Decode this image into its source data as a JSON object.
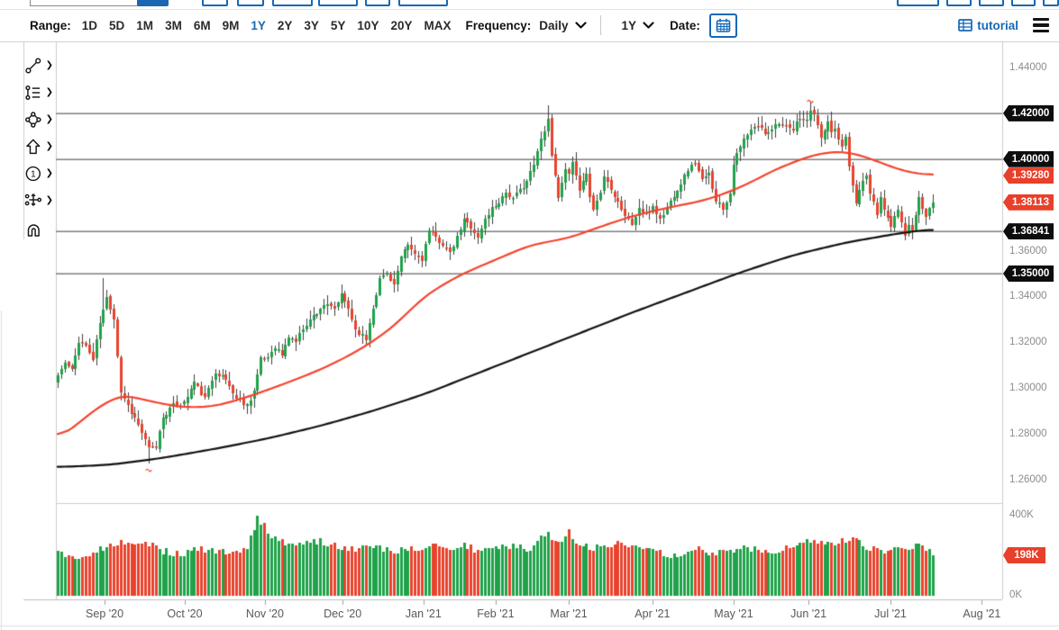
{
  "toolbar": {
    "range_label": "Range:",
    "ranges": [
      "1D",
      "5D",
      "1M",
      "3M",
      "6M",
      "9M",
      "1Y",
      "2Y",
      "3Y",
      "5Y",
      "10Y",
      "20Y",
      "MAX"
    ],
    "active_range": "1Y",
    "frequency_label": "Frequency:",
    "frequency_value": "Daily",
    "period_value": "1Y",
    "date_label": "Date:",
    "tutorial_label": "tutorial"
  },
  "side_toolbar": {
    "tools": [
      {
        "name": "trend-line-tool",
        "icon": "trend-line",
        "has_submenu": true
      },
      {
        "name": "fibonacci-tool",
        "icon": "fibonacci",
        "has_submenu": true
      },
      {
        "name": "shapes-tool",
        "icon": "shapes",
        "has_submenu": true
      },
      {
        "name": "arrow-tool",
        "icon": "arrow-up",
        "has_submenu": true
      },
      {
        "name": "annotation-number-tool",
        "icon": "number-one",
        "has_submenu": true
      },
      {
        "name": "measure-tool",
        "icon": "measure",
        "has_submenu": true
      },
      {
        "name": "magnet-tool",
        "icon": "magnet",
        "has_submenu": false
      }
    ]
  },
  "chart_data": {
    "type": "candlestick",
    "frequency": "Daily",
    "range": "1Y",
    "grid": false,
    "legend": "none",
    "price_axis": {
      "ticks": [
        {
          "label": "1.44000",
          "value": 1.44
        },
        {
          "label": "1.36000",
          "value": 1.36
        },
        {
          "label": "1.34000",
          "value": 1.34
        },
        {
          "label": "1.32000",
          "value": 1.32
        },
        {
          "label": "1.30000",
          "value": 1.3
        },
        {
          "label": "1.28000",
          "value": 1.28
        },
        {
          "label": "1.26000",
          "value": 1.26
        }
      ],
      "range": [
        1.26,
        1.44
      ]
    },
    "volume_axis": {
      "ticks": [
        {
          "label": "400K",
          "value": 400
        },
        {
          "label": "0K",
          "value": 0
        }
      ],
      "range": [
        0,
        400
      ]
    },
    "price_tags": [
      {
        "label": "1.42000",
        "value": 1.42,
        "color": "black"
      },
      {
        "label": "1.40000",
        "value": 1.4,
        "color": "black"
      },
      {
        "label": "1.39280",
        "value": 1.3928,
        "color": "red"
      },
      {
        "label": "1.38113",
        "value": 1.38113,
        "color": "red"
      },
      {
        "label": "1.36841",
        "value": 1.36841,
        "color": "black"
      },
      {
        "label": "1.35000",
        "value": 1.35,
        "color": "black"
      }
    ],
    "volume_tag": {
      "label": "198K",
      "value": 198,
      "color": "red"
    },
    "horizontal_levels": [
      1.42,
      1.4,
      1.36841,
      1.35
    ],
    "x_axis": [
      {
        "label": "Sep '20",
        "day": 13.4
      },
      {
        "label": "Oct '20",
        "day": 36.3
      },
      {
        "label": "Nov '20",
        "day": 59.2
      },
      {
        "label": "Dec '20",
        "day": 81.4
      },
      {
        "label": "Jan '21",
        "day": 104.5
      },
      {
        "label": "Feb '21",
        "day": 125.1
      },
      {
        "label": "Mar '21",
        "day": 146.0
      },
      {
        "label": "Apr '21",
        "day": 169.9
      },
      {
        "label": "May '21",
        "day": 193.1
      },
      {
        "label": "Jun '21",
        "day": 214.5
      },
      {
        "label": "Jul '21",
        "day": 237.9
      },
      {
        "label": "Aug '21",
        "day": 264.0
      }
    ],
    "days": 251,
    "seed": 11,
    "last_close": 1.38113,
    "last_volume_k": 198,
    "close_anchors": [
      [
        0,
        1.3055
      ],
      [
        2,
        1.311
      ],
      [
        4,
        1.3075
      ],
      [
        6,
        1.3205
      ],
      [
        8,
        1.3185
      ],
      [
        10,
        1.3125
      ],
      [
        12,
        1.3285
      ],
      [
        14,
        1.3395
      ],
      [
        16,
        1.3305
      ],
      [
        18,
        1.2985
      ],
      [
        20,
        1.2925
      ],
      [
        23,
        1.284
      ],
      [
        26,
        1.2735
      ],
      [
        28,
        1.2745
      ],
      [
        30,
        1.2875
      ],
      [
        33,
        1.2925
      ],
      [
        36,
        1.2935
      ],
      [
        39,
        1.3025
      ],
      [
        42,
        1.2955
      ],
      [
        45,
        1.3075
      ],
      [
        48,
        1.3035
      ],
      [
        51,
        1.2955
      ],
      [
        54,
        1.2925
      ],
      [
        56,
        1.299
      ],
      [
        58,
        1.3125
      ],
      [
        60,
        1.3135
      ],
      [
        62,
        1.3185
      ],
      [
        64,
        1.3145
      ],
      [
        66,
        1.3225
      ],
      [
        68,
        1.3205
      ],
      [
        70,
        1.3265
      ],
      [
        73,
        1.3315
      ],
      [
        76,
        1.3365
      ],
      [
        79,
        1.3345
      ],
      [
        81,
        1.3405
      ],
      [
        83,
        1.335
      ],
      [
        85,
        1.3255
      ],
      [
        88,
        1.3215
      ],
      [
        90,
        1.3355
      ],
      [
        92,
        1.3475
      ],
      [
        94,
        1.3505
      ],
      [
        96,
        1.345
      ],
      [
        98,
        1.3565
      ],
      [
        100,
        1.3625
      ],
      [
        102,
        1.3585
      ],
      [
        104,
        1.3565
      ],
      [
        106,
        1.3685
      ],
      [
        108,
        1.3655
      ],
      [
        110,
        1.363
      ],
      [
        112,
        1.3585
      ],
      [
        114,
        1.3655
      ],
      [
        116,
        1.3735
      ],
      [
        118,
        1.3705
      ],
      [
        120,
        1.3655
      ],
      [
        122,
        1.3735
      ],
      [
        124,
        1.3785
      ],
      [
        126,
        1.3815
      ],
      [
        128,
        1.3855
      ],
      [
        130,
        1.3825
      ],
      [
        132,
        1.3865
      ],
      [
        134,
        1.3905
      ],
      [
        136,
        1.3975
      ],
      [
        138,
        1.4085
      ],
      [
        140,
        1.4175
      ],
      [
        141,
        1.4015
      ],
      [
        142,
        1.3935
      ],
      [
        143,
        1.3825
      ],
      [
        144,
        1.3905
      ],
      [
        145,
        1.3965
      ],
      [
        146,
        1.3925
      ],
      [
        147,
        1.3985
      ],
      [
        148,
        1.3925
      ],
      [
        149,
        1.3855
      ],
      [
        150,
        1.3895
      ],
      [
        151,
        1.3925
      ],
      [
        152,
        1.3845
      ],
      [
        153,
        1.3785
      ],
      [
        154,
        1.3815
      ],
      [
        155,
        1.3855
      ],
      [
        156,
        1.3925
      ],
      [
        158,
        1.3875
      ],
      [
        160,
        1.3815
      ],
      [
        162,
        1.3755
      ],
      [
        164,
        1.3715
      ],
      [
        166,
        1.3785
      ],
      [
        168,
        1.3755
      ],
      [
        170,
        1.3795
      ],
      [
        172,
        1.3735
      ],
      [
        174,
        1.3785
      ],
      [
        176,
        1.3845
      ],
      [
        178,
        1.3895
      ],
      [
        180,
        1.3955
      ],
      [
        182,
        1.3985
      ],
      [
        184,
        1.3905
      ],
      [
        186,
        1.3935
      ],
      [
        188,
        1.3825
      ],
      [
        190,
        1.3785
      ],
      [
        192,
        1.3855
      ],
      [
        193,
        1.3985
      ],
      [
        196,
        1.4085
      ],
      [
        198,
        1.4125
      ],
      [
        200,
        1.4145
      ],
      [
        202,
        1.4115
      ],
      [
        204,
        1.4135
      ],
      [
        206,
        1.4165
      ],
      [
        208,
        1.4135
      ],
      [
        210,
        1.4125
      ],
      [
        212,
        1.4185
      ],
      [
        214,
        1.4165
      ],
      [
        215,
        1.4215
      ],
      [
        216,
        1.4185
      ],
      [
        217,
        1.4155
      ],
      [
        218,
        1.4085
      ],
      [
        219,
        1.4125
      ],
      [
        220,
        1.4155
      ],
      [
        221,
        1.4105
      ],
      [
        222,
        1.4135
      ],
      [
        223,
        1.4085
      ],
      [
        224,
        1.4055
      ],
      [
        225,
        1.4105
      ],
      [
        226,
        1.3975
      ],
      [
        227,
        1.3895
      ],
      [
        228,
        1.3815
      ],
      [
        229,
        1.3855
      ],
      [
        230,
        1.3905
      ],
      [
        231,
        1.3925
      ],
      [
        232,
        1.3855
      ],
      [
        233,
        1.3805
      ],
      [
        234,
        1.3765
      ],
      [
        235,
        1.3825
      ],
      [
        236,
        1.3785
      ],
      [
        237,
        1.3755
      ],
      [
        238,
        1.3705
      ],
      [
        239,
        1.3755
      ],
      [
        240,
        1.3785
      ],
      [
        241,
        1.3725
      ],
      [
        242,
        1.3675
      ],
      [
        243,
        1.3705
      ],
      [
        244,
        1.3685
      ],
      [
        245,
        1.3755
      ],
      [
        246,
        1.3825
      ],
      [
        247,
        1.3785
      ],
      [
        248,
        1.3745
      ],
      [
        249,
        1.3785
      ],
      [
        250,
        1.3805
      ]
    ],
    "ma_fast_anchors": [
      [
        0,
        1.277
      ],
      [
        10,
        1.29
      ],
      [
        18,
        1.2975
      ],
      [
        27,
        1.294
      ],
      [
        36,
        1.2915
      ],
      [
        45,
        1.292
      ],
      [
        55,
        1.2965
      ],
      [
        65,
        1.302
      ],
      [
        75,
        1.308
      ],
      [
        85,
        1.3155
      ],
      [
        95,
        1.3255
      ],
      [
        105,
        1.3405
      ],
      [
        115,
        1.3495
      ],
      [
        125,
        1.356
      ],
      [
        135,
        1.3625
      ],
      [
        146,
        1.3655
      ],
      [
        155,
        1.3705
      ],
      [
        165,
        1.3755
      ],
      [
        175,
        1.379
      ],
      [
        185,
        1.382
      ],
      [
        195,
        1.3875
      ],
      [
        205,
        1.3955
      ],
      [
        215,
        1.4015
      ],
      [
        222,
        1.4035
      ],
      [
        228,
        1.4025
      ],
      [
        235,
        1.3985
      ],
      [
        242,
        1.3945
      ],
      [
        250,
        1.3928
      ]
    ],
    "ma_slow_anchors": [
      [
        0,
        1.2655
      ],
      [
        15,
        1.2665
      ],
      [
        30,
        1.2695
      ],
      [
        45,
        1.2735
      ],
      [
        60,
        1.278
      ],
      [
        75,
        1.2835
      ],
      [
        90,
        1.29
      ],
      [
        105,
        1.2975
      ],
      [
        120,
        1.3065
      ],
      [
        135,
        1.3155
      ],
      [
        150,
        1.3245
      ],
      [
        165,
        1.3335
      ],
      [
        180,
        1.342
      ],
      [
        195,
        1.3505
      ],
      [
        210,
        1.358
      ],
      [
        225,
        1.3635
      ],
      [
        240,
        1.3675
      ],
      [
        250,
        1.3695
      ]
    ],
    "volume_anchors": [
      [
        0,
        210
      ],
      [
        5,
        190
      ],
      [
        10,
        215
      ],
      [
        14,
        245
      ],
      [
        18,
        260
      ],
      [
        26,
        250
      ],
      [
        30,
        220
      ],
      [
        36,
        200
      ],
      [
        40,
        230
      ],
      [
        45,
        215
      ],
      [
        50,
        205
      ],
      [
        54,
        235
      ],
      [
        57,
        385
      ],
      [
        58,
        335
      ],
      [
        59,
        345
      ],
      [
        60,
        300
      ],
      [
        62,
        280
      ],
      [
        65,
        255
      ],
      [
        70,
        265
      ],
      [
        75,
        270
      ],
      [
        80,
        245
      ],
      [
        85,
        230
      ],
      [
        90,
        245
      ],
      [
        95,
        215
      ],
      [
        100,
        225
      ],
      [
        105,
        235
      ],
      [
        108,
        260
      ],
      [
        112,
        230
      ],
      [
        116,
        245
      ],
      [
        120,
        220
      ],
      [
        125,
        235
      ],
      [
        130,
        240
      ],
      [
        135,
        230
      ],
      [
        139,
        310
      ],
      [
        141,
        290
      ],
      [
        144,
        250
      ],
      [
        146,
        320
      ],
      [
        148,
        270
      ],
      [
        152,
        240
      ],
      [
        156,
        230
      ],
      [
        160,
        255
      ],
      [
        164,
        240
      ],
      [
        168,
        220
      ],
      [
        172,
        210
      ],
      [
        176,
        195
      ],
      [
        180,
        215
      ],
      [
        184,
        230
      ],
      [
        188,
        205
      ],
      [
        192,
        220
      ],
      [
        196,
        235
      ],
      [
        200,
        225
      ],
      [
        204,
        215
      ],
      [
        208,
        230
      ],
      [
        212,
        245
      ],
      [
        215,
        270
      ],
      [
        218,
        255
      ],
      [
        222,
        260
      ],
      [
        226,
        285
      ],
      [
        228,
        265
      ],
      [
        232,
        230
      ],
      [
        236,
        215
      ],
      [
        240,
        225
      ],
      [
        243,
        240
      ],
      [
        246,
        250
      ],
      [
        248,
        235
      ],
      [
        250,
        198
      ]
    ],
    "wick_overrides": [
      {
        "day": 13,
        "high": 1.3482
      },
      {
        "day": 26,
        "low": 1.2672
      },
      {
        "day": 140,
        "high": 1.4235
      },
      {
        "day": 215,
        "high": 1.4248
      },
      {
        "day": 243,
        "low": 1.366
      }
    ],
    "event_marks": [
      {
        "day": 26,
        "price": 1.2641,
        "side": "below"
      },
      {
        "day": 215,
        "price": 1.4252,
        "side": "above"
      }
    ],
    "colors": {
      "up": "#1fa24a",
      "down": "#e8432d",
      "wick": "#3f3f3f",
      "ma_fast": "#f4432e",
      "ma_slow": "#111111",
      "level_line": "#7f7f7f",
      "border": "#cdcdcd",
      "tag_black": "#0d0d0d",
      "tag_red": "#e8402a",
      "accent_blue": "#1668b5"
    }
  }
}
